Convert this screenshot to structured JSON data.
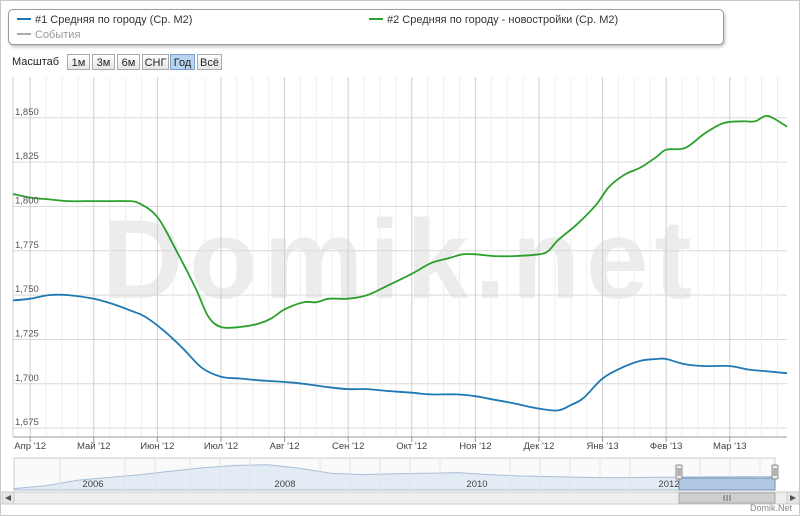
{
  "legend": {
    "items": [
      {
        "label": "#1 Средняя по городу (Ср. М2)",
        "color": "#1f77b4"
      },
      {
        "label": "#2 Средняя по городу - новостройки (Ср. М2)",
        "color": "#2ca02c"
      },
      {
        "label": "События",
        "color": "#aaaaaa"
      }
    ]
  },
  "range_selector": {
    "label": "Масштаб",
    "buttons": [
      "1м",
      "3м",
      "6м",
      "СНГ",
      "Год",
      "Всё"
    ],
    "active": "Год"
  },
  "watermark": "Domik.net",
  "credit": "Domik.Net",
  "navigator": {
    "year_labels": [
      "2006",
      "2008",
      "2010",
      "2012"
    ]
  },
  "chart_data": {
    "type": "line",
    "x_ticks": [
      "Апр '12",
      "Май '12",
      "Июн '12",
      "Июл '12",
      "Авг '12",
      "Сен '12",
      "Окт '12",
      "Ноя '12",
      "Дек '12",
      "Янв '13",
      "Фев '13",
      "Мар '13"
    ],
    "y_ticks": [
      "1,675",
      "1,700",
      "1,725",
      "1,750",
      "1,775",
      "1,800",
      "1,825",
      "1,850"
    ],
    "ylim": [
      1670,
      1873
    ],
    "x_domain": [
      -0.27,
      11.9
    ],
    "grid": true,
    "series": [
      {
        "name": "#1 Средняя по городу (Ср. М2)",
        "color": "#1f77b4",
        "x": [
          -0.27,
          0,
          0.3,
          0.6,
          1,
          1.3,
          1.6,
          1.8,
          2.1,
          2.4,
          2.7,
          3,
          3.3,
          3.6,
          4,
          4.3,
          4.7,
          5,
          5.3,
          5.6,
          6,
          6.3,
          6.7,
          7,
          7.3,
          7.6,
          8,
          8.3,
          8.5,
          8.7,
          9,
          9.3,
          9.6,
          9.85,
          10,
          10.3,
          10.6,
          11,
          11.3,
          11.6,
          11.9
        ],
        "values": [
          1747,
          1748,
          1750,
          1750,
          1748,
          1745,
          1741,
          1738,
          1730,
          1720,
          1709,
          1704,
          1703,
          1702,
          1701,
          1700,
          1698,
          1697,
          1697,
          1696,
          1695,
          1694,
          1694,
          1693,
          1691,
          1689,
          1686,
          1685,
          1688,
          1692,
          1703,
          1709,
          1713,
          1714,
          1714,
          1711,
          1710,
          1710,
          1708,
          1707,
          1706
        ]
      },
      {
        "name": "#2 Средняя по городу - новостройки (Ср. М2)",
        "color": "#2ca02c",
        "x": [
          -0.27,
          0,
          0.3,
          0.6,
          1,
          1.3,
          1.5,
          1.7,
          2,
          2.3,
          2.6,
          2.8,
          3,
          3.3,
          3.6,
          3.8,
          4,
          4.3,
          4.5,
          4.7,
          5,
          5.3,
          5.6,
          6,
          6.3,
          6.6,
          6.8,
          7,
          7.3,
          7.6,
          8,
          8.15,
          8.3,
          8.6,
          8.9,
          9.1,
          9.35,
          9.6,
          9.85,
          10,
          10.3,
          10.6,
          10.9,
          11.2,
          11.4,
          11.6,
          11.9
        ],
        "values": [
          1807,
          1805,
          1804,
          1803,
          1803,
          1803,
          1803,
          1802,
          1794,
          1775,
          1754,
          1738,
          1732,
          1732,
          1734,
          1737,
          1742,
          1746,
          1746,
          1748,
          1748,
          1750,
          1755,
          1762,
          1768,
          1771,
          1773,
          1773,
          1772,
          1772,
          1773,
          1775,
          1781,
          1790,
          1801,
          1811,
          1818,
          1822,
          1828,
          1832,
          1833,
          1841,
          1847,
          1848,
          1848,
          1851,
          1845
        ]
      }
    ]
  }
}
